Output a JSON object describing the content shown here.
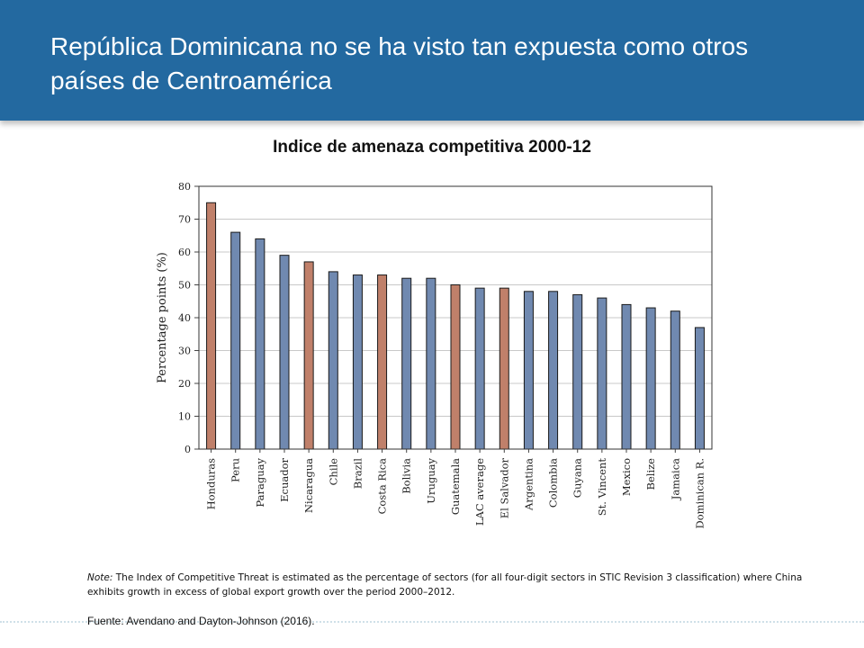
{
  "header": {
    "title": "República Dominicana no se ha visto tan expuesta como otros países de Centroamérica"
  },
  "chart_data": {
    "type": "bar",
    "title": "Indice de amenaza competitiva 2000-12",
    "ylabel": "Percentage points (%)",
    "xlabel": "",
    "ylim": [
      0,
      80
    ],
    "yticks": [
      0,
      10,
      20,
      30,
      40,
      50,
      60,
      70,
      80
    ],
    "grid": true,
    "categories": [
      "Honduras",
      "Peru",
      "Paraguay",
      "Ecuador",
      "Nicaragua",
      "Chile",
      "Brazil",
      "Costa Rica",
      "Bolivia",
      "Uruguay",
      "Guatemala",
      "LAC average",
      "El Salvador",
      "Argentina",
      "Colombia",
      "Guyana",
      "St. Vincent",
      "Mexico",
      "Belize",
      "Jamaica",
      "Dominican R."
    ],
    "values": [
      75,
      66,
      64,
      59,
      57,
      54,
      53,
      53,
      52,
      52,
      50,
      49,
      49,
      48,
      48,
      47,
      46,
      44,
      43,
      42,
      37
    ],
    "highlighted": [
      true,
      false,
      false,
      false,
      true,
      false,
      false,
      true,
      false,
      false,
      true,
      false,
      true,
      false,
      false,
      false,
      false,
      false,
      false,
      false,
      false
    ],
    "colors": {
      "default": "#7089b0",
      "highlight": "#c0806a"
    }
  },
  "note": {
    "label": "Note:",
    "text": "The Index of Competitive Threat is estimated as the percentage of sectors (for all four-digit sectors in STIC Revision 3 classification) where China exhibits growth in excess of global export growth over the period 2000–2012."
  },
  "source": "Fuente: Avendano and Dayton-Johnson (2016)."
}
